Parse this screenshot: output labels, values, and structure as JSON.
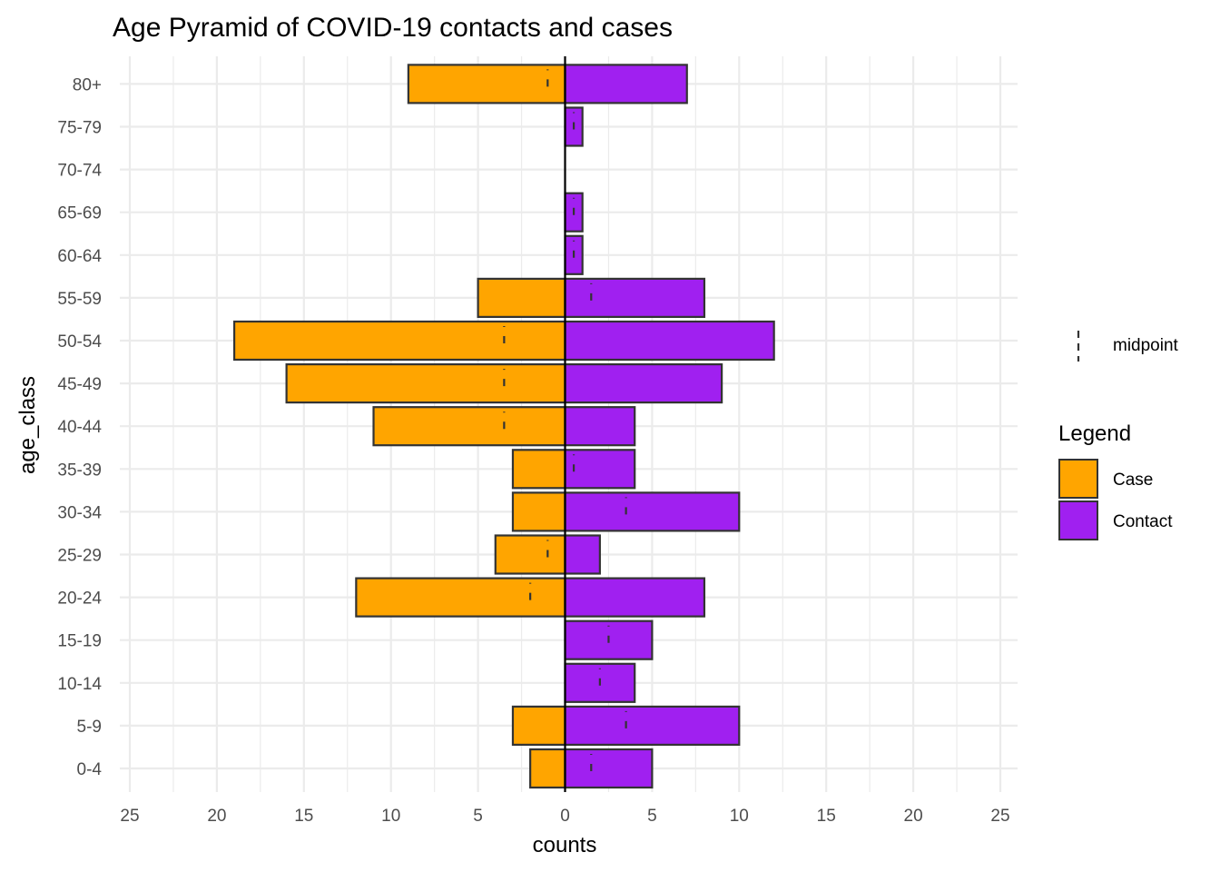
{
  "chart_data": {
    "type": "bar",
    "title": "Age Pyramid of COVID-19 contacts and cases",
    "xlabel": "counts",
    "ylabel": "age_class",
    "xlim": [
      -25,
      25
    ],
    "x_ticks": [
      -25,
      -20,
      -15,
      -10,
      -5,
      0,
      5,
      10,
      15,
      20,
      25
    ],
    "x_tick_labels": [
      "25",
      "20",
      "15",
      "10",
      "5",
      "0",
      "5",
      "10",
      "15",
      "20",
      "25"
    ],
    "categories": [
      "0-4",
      "5-9",
      "10-14",
      "15-19",
      "20-24",
      "25-29",
      "30-34",
      "35-39",
      "40-44",
      "45-49",
      "50-54",
      "55-59",
      "60-64",
      "65-69",
      "70-74",
      "75-79",
      "80+"
    ],
    "series": [
      {
        "name": "Case",
        "color": "#FFA500",
        "side": "left",
        "values": [
          2,
          3,
          0,
          0,
          12,
          4,
          3,
          3,
          11,
          16,
          19,
          5,
          0,
          0,
          0,
          0,
          9
        ]
      },
      {
        "name": "Contact",
        "color": "#A020F0",
        "side": "right",
        "values": [
          5,
          10,
          4,
          5,
          8,
          2,
          10,
          4,
          4,
          9,
          12,
          8,
          1,
          1,
          0,
          1,
          7
        ]
      }
    ],
    "midpoint": {
      "name": "midpoint",
      "values": [
        1.5,
        3.5,
        2,
        2.5,
        -2,
        -1,
        3.5,
        0.5,
        -3.5,
        -3.5,
        -3.5,
        1.5,
        0.5,
        0.5,
        null,
        0.5,
        -1
      ]
    },
    "legend": {
      "title": "Legend",
      "position": "right"
    },
    "grid": true
  }
}
